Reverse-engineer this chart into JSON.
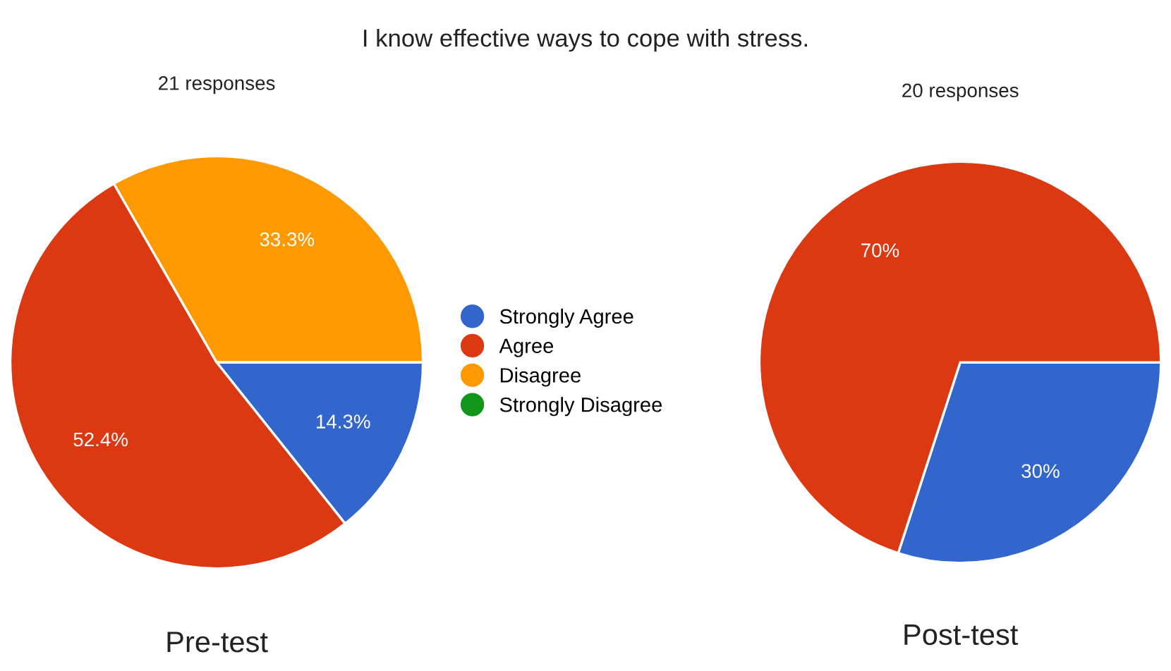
{
  "chart_data": [
    {
      "type": "pie",
      "title": "Pre-test",
      "subtitle": "21 responses",
      "annotations": [
        "I know effective ways to cope with stress."
      ],
      "categories": [
        "Strongly Agree",
        "Agree",
        "Disagree",
        "Strongly Disagree"
      ],
      "values": [
        14.3,
        52.4,
        33.3,
        0
      ],
      "value_labels": [
        "14.3%",
        "52.4%",
        "33.3%",
        null
      ],
      "colors": [
        "#3366cc",
        "#dc3912",
        "#ff9900",
        "#109618"
      ],
      "legend": "right"
    },
    {
      "type": "pie",
      "title": "Post-test",
      "subtitle": "20 responses",
      "categories": [
        null,
        null
      ],
      "values": [
        30,
        70
      ],
      "value_labels": [
        "30%",
        "70%"
      ],
      "colors": [
        "#3366cc",
        "#dc3912"
      ]
    }
  ]
}
